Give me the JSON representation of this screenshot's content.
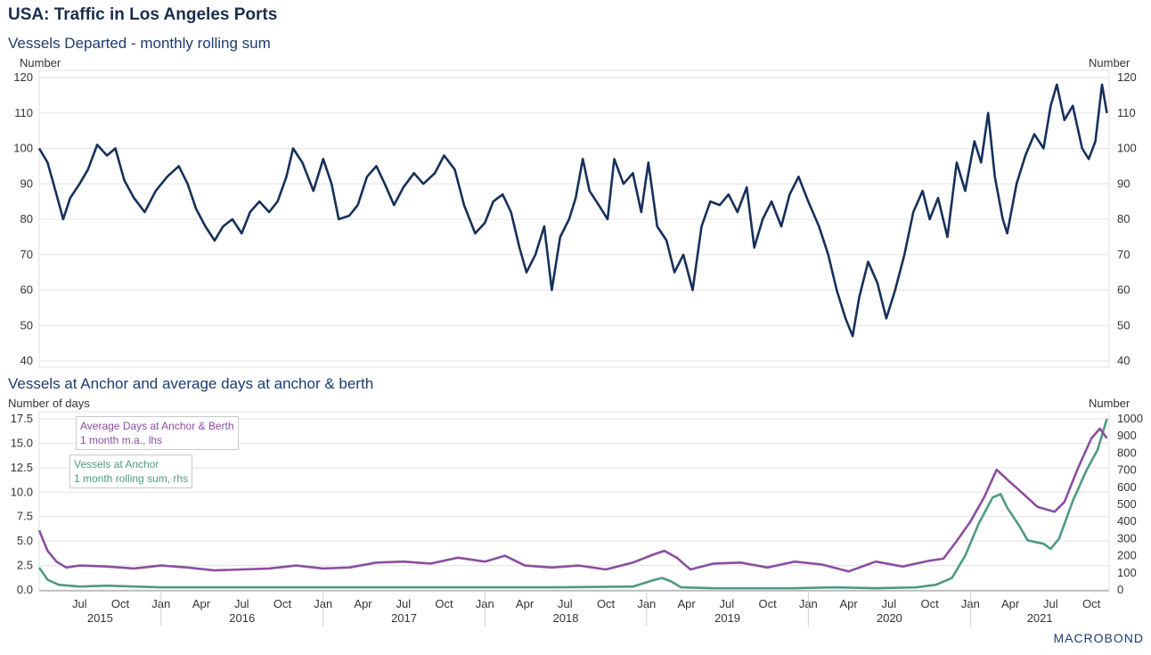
{
  "header": {
    "title": "USA: Traffic in Los Angeles Ports",
    "subtitle_top": "Vessels Departed - monthly rolling sum",
    "subtitle_bottom": "Vessels at Anchor and average days at anchor & berth",
    "top_unit_left": "Number",
    "top_unit_right": "Number",
    "bottom_unit_left": "Number of days",
    "bottom_unit_right": "Number",
    "logo": "MACROBOND"
  },
  "colors": {
    "departed": "#16305a",
    "days": "#8b4ea0",
    "anchor": "#4f9a84",
    "grid": "#e3e3e3"
  },
  "chart_data": [
    {
      "type": "line",
      "title": "Vessels Departed - monthly rolling sum",
      "ylabel": "Number",
      "ylim": [
        40,
        120
      ],
      "yticks": [
        40,
        50,
        60,
        70,
        80,
        90,
        100,
        110,
        120
      ],
      "xlim": [
        "2015-04-01",
        "2021-11-10"
      ],
      "grid": true,
      "series": [
        {
          "name": "Vessels Departed",
          "points": [
            [
              "2015-04-01",
              100
            ],
            [
              "2015-04-20",
              96
            ],
            [
              "2015-05-10",
              87
            ],
            [
              "2015-05-25",
              80
            ],
            [
              "2015-06-10",
              86
            ],
            [
              "2015-07-01",
              90
            ],
            [
              "2015-07-20",
              94
            ],
            [
              "2015-08-10",
              101
            ],
            [
              "2015-09-01",
              98
            ],
            [
              "2015-09-20",
              100
            ],
            [
              "2015-10-10",
              91
            ],
            [
              "2015-11-01",
              86
            ],
            [
              "2015-11-25",
              82
            ],
            [
              "2015-12-20",
              88
            ],
            [
              "2016-01-15",
              92
            ],
            [
              "2016-02-10",
              95
            ],
            [
              "2016-03-01",
              90
            ],
            [
              "2016-03-20",
              83
            ],
            [
              "2016-04-10",
              78
            ],
            [
              "2016-05-01",
              74
            ],
            [
              "2016-05-20",
              78
            ],
            [
              "2016-06-10",
              80
            ],
            [
              "2016-07-01",
              76
            ],
            [
              "2016-07-20",
              82
            ],
            [
              "2016-08-10",
              85
            ],
            [
              "2016-09-01",
              82
            ],
            [
              "2016-09-20",
              85
            ],
            [
              "2016-10-10",
              92
            ],
            [
              "2016-10-25",
              100
            ],
            [
              "2016-11-15",
              96
            ],
            [
              "2016-12-10",
              88
            ],
            [
              "2017-01-01",
              97
            ],
            [
              "2017-01-20",
              90
            ],
            [
              "2017-02-05",
              80
            ],
            [
              "2017-03-01",
              81
            ],
            [
              "2017-03-20",
              84
            ],
            [
              "2017-04-10",
              92
            ],
            [
              "2017-05-01",
              95
            ],
            [
              "2017-05-20",
              90
            ],
            [
              "2017-06-10",
              84
            ],
            [
              "2017-07-01",
              89
            ],
            [
              "2017-07-25",
              93
            ],
            [
              "2017-08-15",
              90
            ],
            [
              "2017-09-10",
              93
            ],
            [
              "2017-10-01",
              98
            ],
            [
              "2017-10-25",
              94
            ],
            [
              "2017-11-15",
              84
            ],
            [
              "2017-12-10",
              76
            ],
            [
              "2018-01-01",
              79
            ],
            [
              "2018-01-20",
              85
            ],
            [
              "2018-02-10",
              87
            ],
            [
              "2018-03-01",
              82
            ],
            [
              "2018-03-20",
              72
            ],
            [
              "2018-04-05",
              65
            ],
            [
              "2018-04-25",
              70
            ],
            [
              "2018-05-15",
              78
            ],
            [
              "2018-06-01",
              60
            ],
            [
              "2018-06-20",
              75
            ],
            [
              "2018-07-10",
              80
            ],
            [
              "2018-07-25",
              86
            ],
            [
              "2018-08-10",
              97
            ],
            [
              "2018-08-25",
              88
            ],
            [
              "2018-09-15",
              84
            ],
            [
              "2018-10-05",
              80
            ],
            [
              "2018-10-20",
              97
            ],
            [
              "2018-11-10",
              90
            ],
            [
              "2018-12-01",
              93
            ],
            [
              "2018-12-20",
              82
            ],
            [
              "2019-01-05",
              96
            ],
            [
              "2019-01-25",
              78
            ],
            [
              "2019-02-15",
              74
            ],
            [
              "2019-03-05",
              65
            ],
            [
              "2019-03-25",
              70
            ],
            [
              "2019-04-15",
              60
            ],
            [
              "2019-05-05",
              78
            ],
            [
              "2019-05-25",
              85
            ],
            [
              "2019-06-15",
              84
            ],
            [
              "2019-07-05",
              87
            ],
            [
              "2019-07-25",
              82
            ],
            [
              "2019-08-15",
              89
            ],
            [
              "2019-09-01",
              72
            ],
            [
              "2019-09-20",
              80
            ],
            [
              "2019-10-10",
              85
            ],
            [
              "2019-11-01",
              78
            ],
            [
              "2019-11-20",
              87
            ],
            [
              "2019-12-10",
              92
            ],
            [
              "2020-01-01",
              85
            ],
            [
              "2020-01-25",
              78
            ],
            [
              "2020-02-15",
              70
            ],
            [
              "2020-03-05",
              60
            ],
            [
              "2020-03-25",
              52
            ],
            [
              "2020-04-10",
              47
            ],
            [
              "2020-04-25",
              58
            ],
            [
              "2020-05-15",
              68
            ],
            [
              "2020-06-05",
              62
            ],
            [
              "2020-06-25",
              52
            ],
            [
              "2020-07-15",
              60
            ],
            [
              "2020-08-05",
              70
            ],
            [
              "2020-08-25",
              82
            ],
            [
              "2020-09-15",
              88
            ],
            [
              "2020-10-01",
              80
            ],
            [
              "2020-10-20",
              86
            ],
            [
              "2020-11-10",
              75
            ],
            [
              "2020-12-01",
              96
            ],
            [
              "2020-12-20",
              88
            ],
            [
              "2021-01-10",
              102
            ],
            [
              "2021-01-25",
              96
            ],
            [
              "2021-02-10",
              110
            ],
            [
              "2021-02-25",
              92
            ],
            [
              "2021-03-15",
              80
            ],
            [
              "2021-03-25",
              76
            ],
            [
              "2021-04-15",
              90
            ],
            [
              "2021-05-05",
              98
            ],
            [
              "2021-05-25",
              104
            ],
            [
              "2021-06-15",
              100
            ],
            [
              "2021-07-01",
              112
            ],
            [
              "2021-07-15",
              118
            ],
            [
              "2021-08-01",
              108
            ],
            [
              "2021-08-20",
              112
            ],
            [
              "2021-09-10",
              100
            ],
            [
              "2021-09-25",
              97
            ],
            [
              "2021-10-10",
              102
            ],
            [
              "2021-10-25",
              118
            ],
            [
              "2021-11-05",
              110
            ]
          ]
        }
      ]
    },
    {
      "type": "line",
      "title": "Vessels at Anchor and average days at anchor & berth",
      "ylabel_left": "Number of days",
      "ylabel_right": "Number",
      "ylim_left": [
        0,
        17.5
      ],
      "yticks_left": [
        "0.0",
        "2.5",
        "5.0",
        "7.5",
        "10.0",
        "12.5",
        "15.0",
        "17.5"
      ],
      "ylim_right": [
        0,
        1000
      ],
      "yticks_right": [
        0,
        100,
        200,
        300,
        400,
        500,
        600,
        700,
        800,
        900,
        1000
      ],
      "xlim": [
        "2015-04-01",
        "2021-11-10"
      ],
      "grid": true,
      "series": [
        {
          "name": "Average Days at Anchor & Berth",
          "legend_lines": [
            "Average Days at Anchor & Berth",
            "1 month m.a., lhs"
          ],
          "axis": "left",
          "points": [
            [
              "2015-04-01",
              6.1
            ],
            [
              "2015-04-20",
              4.0
            ],
            [
              "2015-05-10",
              2.9
            ],
            [
              "2015-06-01",
              2.3
            ],
            [
              "2015-07-01",
              2.5
            ],
            [
              "2015-09-01",
              2.4
            ],
            [
              "2015-11-01",
              2.2
            ],
            [
              "2016-01-01",
              2.5
            ],
            [
              "2016-03-01",
              2.3
            ],
            [
              "2016-05-01",
              2.0
            ],
            [
              "2016-07-01",
              2.1
            ],
            [
              "2016-09-01",
              2.2
            ],
            [
              "2016-11-01",
              2.5
            ],
            [
              "2017-01-01",
              2.2
            ],
            [
              "2017-03-01",
              2.3
            ],
            [
              "2017-05-01",
              2.8
            ],
            [
              "2017-07-01",
              2.9
            ],
            [
              "2017-09-01",
              2.7
            ],
            [
              "2017-11-01",
              3.3
            ],
            [
              "2018-01-01",
              2.9
            ],
            [
              "2018-02-15",
              3.5
            ],
            [
              "2018-04-01",
              2.5
            ],
            [
              "2018-06-01",
              2.3
            ],
            [
              "2018-08-01",
              2.5
            ],
            [
              "2018-10-01",
              2.1
            ],
            [
              "2018-12-01",
              2.8
            ],
            [
              "2019-01-15",
              3.6
            ],
            [
              "2019-02-10",
              4.0
            ],
            [
              "2019-03-10",
              3.3
            ],
            [
              "2019-04-10",
              2.1
            ],
            [
              "2019-06-01",
              2.7
            ],
            [
              "2019-08-01",
              2.8
            ],
            [
              "2019-10-01",
              2.3
            ],
            [
              "2019-12-01",
              2.9
            ],
            [
              "2020-02-01",
              2.6
            ],
            [
              "2020-04-01",
              1.9
            ],
            [
              "2020-06-01",
              2.9
            ],
            [
              "2020-08-01",
              2.4
            ],
            [
              "2020-10-01",
              3.0
            ],
            [
              "2020-11-01",
              3.2
            ],
            [
              "2020-12-01",
              5.0
            ],
            [
              "2021-01-01",
              7.0
            ],
            [
              "2021-02-01",
              9.5
            ],
            [
              "2021-03-01",
              12.3
            ],
            [
              "2021-04-01",
              11.0
            ],
            [
              "2021-05-01",
              9.8
            ],
            [
              "2021-06-01",
              8.5
            ],
            [
              "2021-07-10",
              8.0
            ],
            [
              "2021-08-01",
              9.0
            ],
            [
              "2021-09-01",
              12.5
            ],
            [
              "2021-10-01",
              15.5
            ],
            [
              "2021-10-20",
              16.5
            ],
            [
              "2021-11-05",
              15.5
            ]
          ]
        },
        {
          "name": "Vessels at Anchor",
          "legend_lines": [
            "Vessels at Anchor",
            "1 month rolling sum, rhs"
          ],
          "axis": "right",
          "points": [
            [
              "2015-04-01",
              130
            ],
            [
              "2015-04-20",
              60
            ],
            [
              "2015-05-15",
              30
            ],
            [
              "2015-07-01",
              20
            ],
            [
              "2015-09-01",
              25
            ],
            [
              "2016-01-01",
              15
            ],
            [
              "2016-06-01",
              15
            ],
            [
              "2017-01-01",
              15
            ],
            [
              "2017-06-01",
              15
            ],
            [
              "2018-01-01",
              15
            ],
            [
              "2018-06-01",
              15
            ],
            [
              "2018-12-01",
              20
            ],
            [
              "2019-01-20",
              60
            ],
            [
              "2019-02-05",
              70
            ],
            [
              "2019-02-25",
              50
            ],
            [
              "2019-03-20",
              15
            ],
            [
              "2019-06-01",
              10
            ],
            [
              "2019-12-01",
              10
            ],
            [
              "2020-03-01",
              15
            ],
            [
              "2020-06-01",
              10
            ],
            [
              "2020-09-01",
              15
            ],
            [
              "2020-10-15",
              30
            ],
            [
              "2020-11-20",
              70
            ],
            [
              "2020-12-20",
              200
            ],
            [
              "2021-01-20",
              390
            ],
            [
              "2021-02-20",
              540
            ],
            [
              "2021-03-10",
              560
            ],
            [
              "2021-03-25",
              480
            ],
            [
              "2021-04-20",
              380
            ],
            [
              "2021-05-10",
              290
            ],
            [
              "2021-06-15",
              270
            ],
            [
              "2021-07-01",
              240
            ],
            [
              "2021-07-20",
              300
            ],
            [
              "2021-08-20",
              520
            ],
            [
              "2021-09-20",
              700
            ],
            [
              "2021-10-15",
              820
            ],
            [
              "2021-11-05",
              1000
            ]
          ]
        }
      ],
      "x_month_labels": [
        "Jul",
        "Oct",
        "Jan",
        "Apr",
        "Jul",
        "Oct",
        "Jan",
        "Apr",
        "Jul",
        "Oct",
        "Jan",
        "Apr",
        "Jul",
        "Oct",
        "Jan",
        "Apr",
        "Jul",
        "Oct",
        "Jan",
        "Apr",
        "Jul",
        "Oct",
        "Jan",
        "Apr",
        "Jul",
        "Oct"
      ],
      "x_year_labels": [
        "2015",
        "2016",
        "2017",
        "2018",
        "2019",
        "2020",
        "2021"
      ]
    }
  ]
}
